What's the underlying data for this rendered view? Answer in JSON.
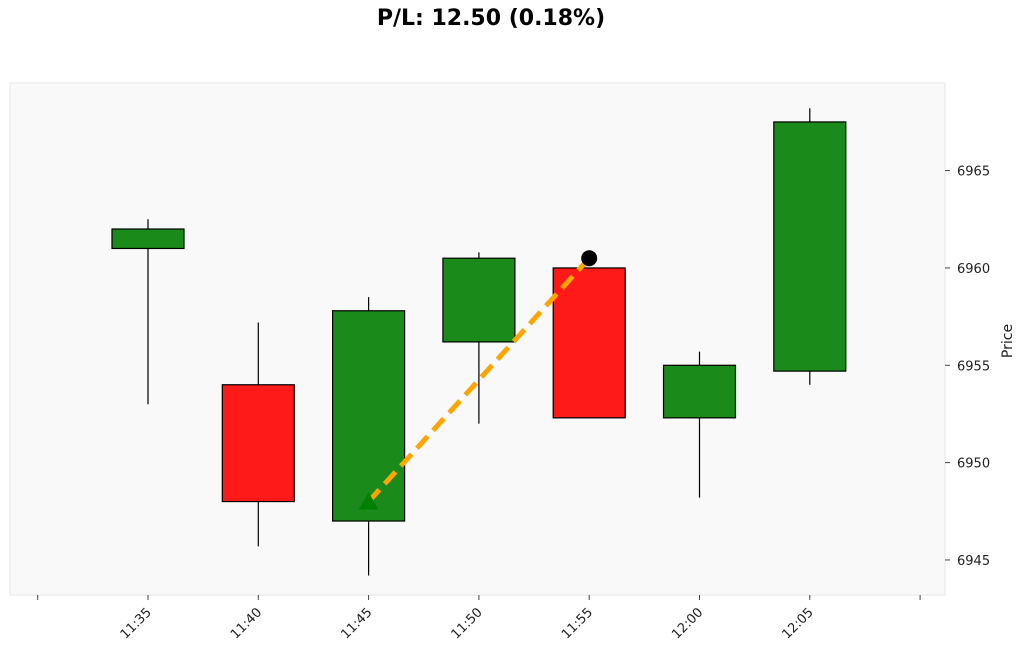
{
  "chart_data": {
    "type": "candlestick",
    "title": "P/L: 12.50 (0.18%)",
    "ylabel": "Price",
    "xlabel": "",
    "ylim": [
      6943.2,
      6969.5
    ],
    "yticks": [
      6945,
      6950,
      6955,
      6960,
      6965
    ],
    "xticks": [
      "11:35",
      "11:40",
      "11:45",
      "11:50",
      "11:55",
      "12:00",
      "12:05"
    ],
    "grid": false,
    "colors": {
      "up": "#1a8a1a",
      "down": "#ff1a1a",
      "background": "#f9f9f9",
      "trade_line": "#ffa500",
      "entry_marker": "#008000",
      "exit_marker": "#000000"
    },
    "candles": [
      {
        "time": "11:35",
        "open": 6961.0,
        "high": 6962.5,
        "low": 6953.0,
        "close": 6962.0
      },
      {
        "time": "11:40",
        "open": 6954.0,
        "high": 6957.2,
        "low": 6945.7,
        "close": 6948.0
      },
      {
        "time": "11:45",
        "open": 6947.0,
        "high": 6958.5,
        "low": 6944.2,
        "close": 6957.8
      },
      {
        "time": "11:50",
        "open": 6956.2,
        "high": 6960.8,
        "low": 6952.0,
        "close": 6960.5
      },
      {
        "time": "11:55",
        "open": 6960.0,
        "high": 6960.0,
        "low": 6952.3,
        "close": 6952.3
      },
      {
        "time": "12:00",
        "open": 6952.3,
        "high": 6955.7,
        "low": 6948.2,
        "close": 6955.0
      },
      {
        "time": "12:05",
        "open": 6954.7,
        "high": 6968.2,
        "low": 6954.0,
        "close": 6967.5
      }
    ],
    "trade": {
      "entry": {
        "time": "11:45",
        "price": 6948.0
      },
      "exit": {
        "time": "11:55",
        "price": 6960.5
      }
    }
  }
}
